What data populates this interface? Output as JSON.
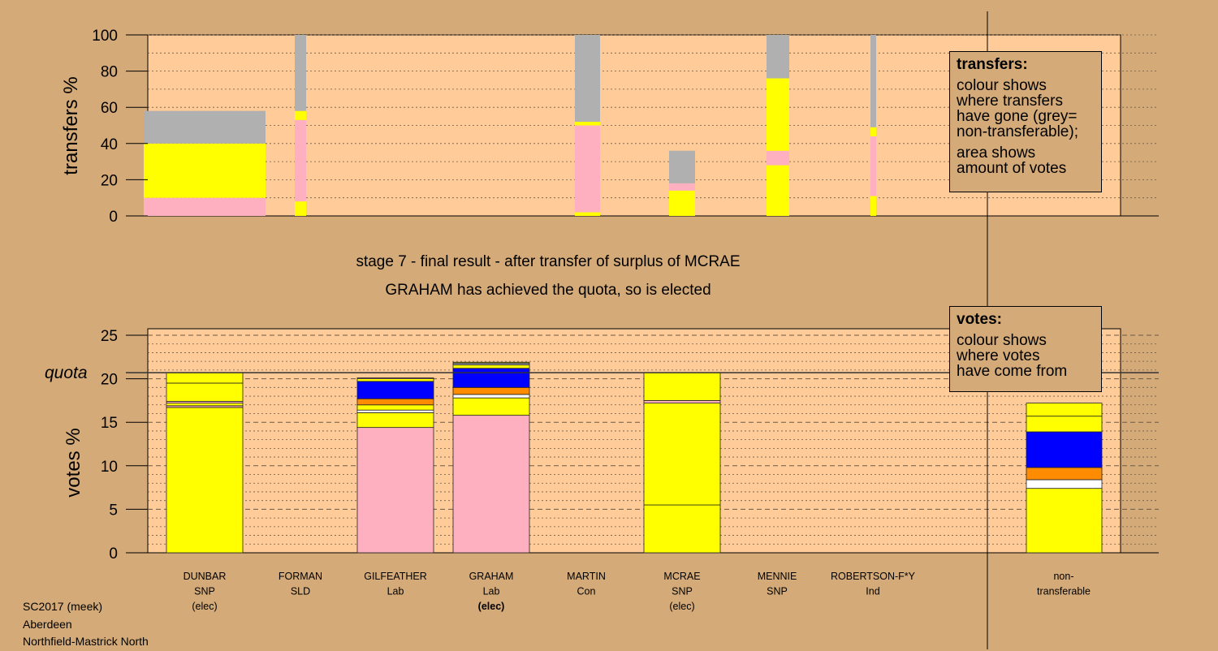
{
  "chart_data": [
    {
      "type": "bar",
      "title": "",
      "ylabel": "transfers %",
      "ylim": [
        0,
        100
      ],
      "yticks": [
        "0",
        "20",
        "40",
        "60",
        "80",
        "100"
      ],
      "bars": [
        {
          "segments": [
            {
              "color": "#ffb0c0",
              "value": 10
            },
            {
              "color": "#ffff00",
              "value": 30
            },
            {
              "color": "#b0b0b0",
              "value": 18
            }
          ]
        },
        {
          "segments": [
            {
              "color": "#ffff00",
              "value": 8
            },
            {
              "color": "#ffb0c0",
              "value": 45
            },
            {
              "color": "#ffff00",
              "value": 5
            },
            {
              "color": "#b0b0b0",
              "value": 42
            }
          ]
        },
        {
          "segments": [
            {
              "color": "#ffff00",
              "value": 2
            },
            {
              "color": "#ffb0c0",
              "value": 48
            },
            {
              "color": "#ffff00",
              "value": 2
            },
            {
              "color": "#b0b0b0",
              "value": 48
            }
          ]
        },
        {
          "segments": [
            {
              "color": "#ffff00",
              "value": 14
            },
            {
              "color": "#ffb0c0",
              "value": 4
            },
            {
              "color": "#b0b0b0",
              "value": 18
            }
          ]
        },
        {
          "segments": [
            {
              "color": "#ffff00",
              "value": 28
            },
            {
              "color": "#ffb0c0",
              "value": 8
            },
            {
              "color": "#ffff00",
              "value": 40
            },
            {
              "color": "#b0b0b0",
              "value": 24
            }
          ]
        },
        {
          "segments": [
            {
              "color": "#ffff00",
              "value": 11
            },
            {
              "color": "#ffb0c0",
              "value": 33
            },
            {
              "color": "#ffff00",
              "value": 5
            },
            {
              "color": "#b0b0b0",
              "value": 51
            }
          ]
        }
      ]
    },
    {
      "type": "bar",
      "title": "",
      "ylabel": "votes %",
      "ylim": [
        0,
        25
      ],
      "yticks": [
        "0",
        "5",
        "10",
        "15",
        "20",
        "25"
      ],
      "quota": 20.7,
      "quota_label": "quota",
      "categories": [
        {
          "name": "DUNBAR",
          "party": "SNP",
          "status": "(elec)",
          "bold": false
        },
        {
          "name": "FORMAN",
          "party": "SLD",
          "status": "",
          "bold": false
        },
        {
          "name": "GILFEATHER",
          "party": "Lab",
          "status": "",
          "bold": false
        },
        {
          "name": "GRAHAM",
          "party": "Lab",
          "status": "(elec)",
          "bold": true
        },
        {
          "name": "MARTIN",
          "party": "Con",
          "status": "",
          "bold": false
        },
        {
          "name": "MCRAE",
          "party": "SNP",
          "status": "(elec)",
          "bold": false
        },
        {
          "name": "MENNIE",
          "party": "SNP",
          "status": "",
          "bold": false
        },
        {
          "name": "ROBERTSON-F*Y",
          "party": "Ind",
          "status": "",
          "bold": false
        },
        {
          "name": "non-",
          "party": "transferable",
          "status": "",
          "bold": false
        }
      ],
      "bars": [
        {
          "segments": [
            {
              "color": "#ffff00",
              "value": 16.7
            },
            {
              "color": "#ffb0c0",
              "value": 0.2
            },
            {
              "color": "#ffff00",
              "value": 0.3
            },
            {
              "color": "#ffb0c0",
              "value": 0.2
            },
            {
              "color": "#ffff00",
              "value": 2.1
            },
            {
              "color": "#ffff00",
              "value": 1.2
            }
          ]
        },
        {
          "segments": []
        },
        {
          "segments": [
            {
              "color": "#ffb0c0",
              "value": 14.4
            },
            {
              "color": "#ffff00",
              "value": 1.7
            },
            {
              "color": "#ffffff",
              "value": 0.3
            },
            {
              "color": "#ffff00",
              "value": 0.6
            },
            {
              "color": "#ff8c00",
              "value": 0.7
            },
            {
              "color": "#0000ff",
              "value": 2.0
            },
            {
              "color": "#ffff00",
              "value": 0.3
            },
            {
              "color": "#ffb0c0",
              "value": 0.1
            }
          ]
        },
        {
          "segments": [
            {
              "color": "#ffb0c0",
              "value": 15.8
            },
            {
              "color": "#ffff00",
              "value": 2.0
            },
            {
              "color": "#ffffff",
              "value": 0.4
            },
            {
              "color": "#ff8c00",
              "value": 0.8
            },
            {
              "color": "#0000ff",
              "value": 2.2
            },
            {
              "color": "#ffff00",
              "value": 0.4
            },
            {
              "color": "#b0b0b0",
              "value": 0.2
            },
            {
              "color": "#ffff00",
              "value": 0.1
            }
          ]
        },
        {
          "segments": []
        },
        {
          "segments": [
            {
              "color": "#ffff00",
              "value": 5.5
            },
            {
              "color": "#ffff00",
              "value": 11.7
            },
            {
              "color": "#ffb0c0",
              "value": 0.3
            },
            {
              "color": "#ffff00",
              "value": 3.2
            }
          ]
        },
        {
          "segments": []
        },
        {
          "segments": []
        },
        {
          "segments": [
            {
              "color": "#ffff00",
              "value": 7.4
            },
            {
              "color": "#ffffff",
              "value": 1.0
            },
            {
              "color": "#ff8c00",
              "value": 1.4
            },
            {
              "color": "#0000ff",
              "value": 4.1
            },
            {
              "color": "#ffff00",
              "value": 1.8
            },
            {
              "color": "#ffff00",
              "value": 1.5
            }
          ]
        }
      ]
    }
  ],
  "stage_title": "stage 7 - final result - after transfer of surplus of MCRAE",
  "stage_subtitle": "GRAHAM has achieved the quota, so is elected",
  "legend_transfers": {
    "title": "transfers:",
    "line1": "colour shows",
    "line2": "where transfers",
    "line3": "have gone (grey=",
    "line4": "non-transferable);",
    "line5": "area shows",
    "line6": "amount of votes"
  },
  "legend_votes": {
    "title": "votes:",
    "line1": "colour shows",
    "line2": "where votes",
    "line3": "have come from"
  },
  "footer": {
    "line1": "SC2017 (meek)",
    "line2": "Aberdeen",
    "line3": "Northfield-Mastrick North"
  },
  "colors": {
    "background": "#d4aa78",
    "plot_area": "#ffcc99",
    "snp": "#ffff00",
    "lab": "#ffb0c0",
    "con": "#0000ff",
    "sld": "#ff8c00",
    "ind": "#ffffff",
    "non_transferable": "#b0b0b0"
  }
}
